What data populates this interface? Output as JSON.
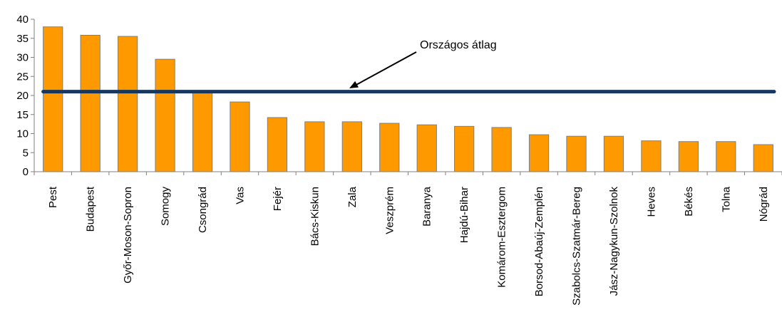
{
  "chart_data": {
    "type": "bar",
    "title": "",
    "xlabel": "",
    "ylabel": "",
    "ylim": [
      0,
      40
    ],
    "yticks": [
      0,
      5,
      10,
      15,
      20,
      25,
      30,
      35,
      40
    ],
    "grid": false,
    "categories": [
      "Pest",
      "Budapest",
      "Győr-Moson-Sopron",
      "Somogy",
      "Csongrád",
      "Vas",
      "Fejér",
      "Bács-Kiskun",
      "Zala",
      "Veszprém",
      "Baranya",
      "Hajdú-Bihar",
      "Komárom-Esztergom",
      "Borsod-Abaúj-Zemplén",
      "Szabolcs-Szatmár-Bereg",
      "Jász-Nagykun-Szolnok",
      "Heves",
      "Békés",
      "Tolna",
      "Nógrád"
    ],
    "values": [
      38,
      35.8,
      35.5,
      29.5,
      20.7,
      18.3,
      14.2,
      13.1,
      13.1,
      12.7,
      12.3,
      11.9,
      11.6,
      9.7,
      9.3,
      9.3,
      8.1,
      7.9,
      7.9,
      7.1
    ],
    "bar_color": "#FF9900",
    "bar_edge_color": "#7F7F7F",
    "reference_line": {
      "label": "Országos átlag",
      "value": 21,
      "color": "#17375E"
    }
  }
}
